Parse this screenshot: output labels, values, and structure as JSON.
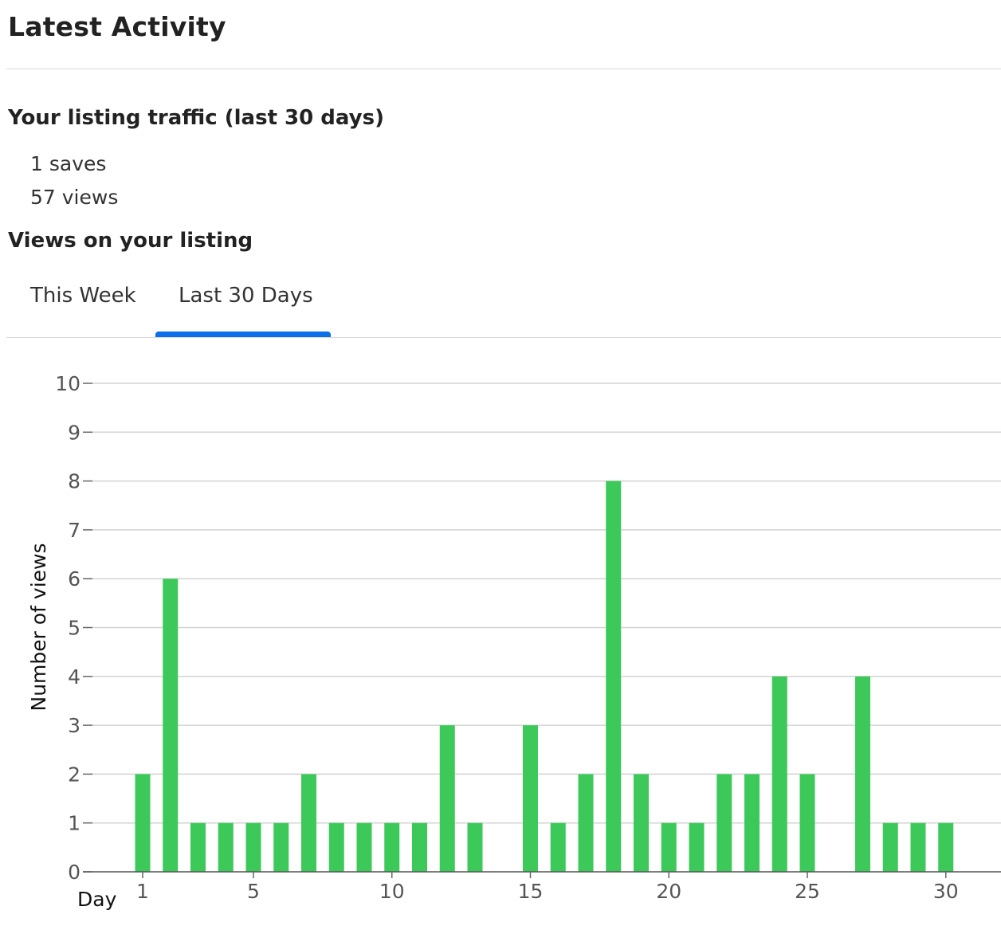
{
  "header": {
    "title": "Latest Activity"
  },
  "traffic": {
    "heading": "Your listing traffic (last 30 days)",
    "saves": "1 saves",
    "views": "57 views"
  },
  "views_section": {
    "heading": "Views on your listing",
    "tabs": [
      {
        "label": "This Week",
        "active": false
      },
      {
        "label": "Last 30 Days",
        "active": true
      }
    ]
  },
  "colors": {
    "bar": "#3cc95a",
    "accent": "#0a6fe8",
    "grid": "#d3d3d3"
  },
  "chart_data": {
    "type": "bar",
    "x": [
      1,
      2,
      3,
      4,
      5,
      6,
      7,
      8,
      9,
      10,
      11,
      12,
      13,
      14,
      15,
      16,
      17,
      18,
      19,
      20,
      21,
      22,
      23,
      24,
      25,
      26,
      27,
      28,
      29,
      30
    ],
    "values": [
      2,
      6,
      1,
      1,
      1,
      1,
      2,
      1,
      1,
      1,
      1,
      3,
      1,
      0,
      3,
      1,
      2,
      8,
      2,
      1,
      1,
      2,
      2,
      4,
      2,
      0,
      4,
      1,
      1,
      1
    ],
    "xticks": [
      1,
      5,
      10,
      15,
      20,
      25,
      30
    ],
    "yticks": [
      0,
      1,
      2,
      3,
      4,
      5,
      6,
      7,
      8,
      9,
      10
    ],
    "xlabel": "Day",
    "ylabel": "Number of views",
    "ylim": [
      0,
      10
    ],
    "grid": true,
    "legend": "none"
  }
}
